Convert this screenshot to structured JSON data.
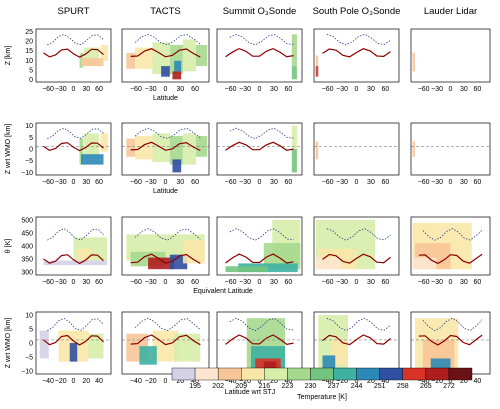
{
  "chart_data": {
    "type": "heatmap",
    "column_titles": [
      "SPURT",
      "TACTS",
      "Summit O₃Sonde",
      "South Pole O₃Sonde",
      "Lauder Lidar"
    ],
    "rows": [
      {
        "ylabel": "Z [km]",
        "xlabel": "Latitude",
        "yticks": [
          "0",
          "5",
          "10",
          "15",
          "20",
          "25"
        ],
        "xticks": [
          "−60",
          "−30",
          "0",
          "30",
          "60"
        ]
      },
      {
        "ylabel": "Z wrt WMO [km]",
        "xlabel": "Latitude",
        "yticks": [
          "−10",
          "−5",
          "0",
          "5",
          "10"
        ],
        "xticks": [
          "−60",
          "−30",
          "0",
          "30",
          "60"
        ]
      },
      {
        "ylabel": "θ [K]",
        "xlabel": "Equivalent Latitude",
        "yticks": [
          "300",
          "350",
          "400",
          "450",
          "500"
        ],
        "xticks": [
          "−60",
          "−30",
          "0",
          "30",
          "60"
        ]
      },
      {
        "ylabel": "Z wrt WMO [km]",
        "xlabel": "Latitude wrt STJ",
        "yticks": [
          "−10",
          "−5",
          "0",
          "5",
          "10"
        ],
        "xticks": [
          "−40",
          "−20",
          "0",
          "20",
          "40"
        ]
      }
    ],
    "colorbar": {
      "label": "Temperature [K]",
      "ticks": [
        "195",
        "202",
        "209",
        "216",
        "223",
        "230",
        "237",
        "244",
        "251",
        "258",
        "265",
        "272"
      ],
      "colors": [
        "#d4d0e6",
        "#fde5cf",
        "#f8c598",
        "#f9e7a8",
        "#d7edaa",
        "#a6d98e",
        "#73c47e",
        "#3eb1a3",
        "#2c88b6",
        "#2f4fa0",
        "#d93226",
        "#b01d1d",
        "#6b1216"
      ]
    },
    "curves": {
      "tropopause_color": "#8b0000",
      "lrt_color": "#2a3a8c"
    }
  }
}
